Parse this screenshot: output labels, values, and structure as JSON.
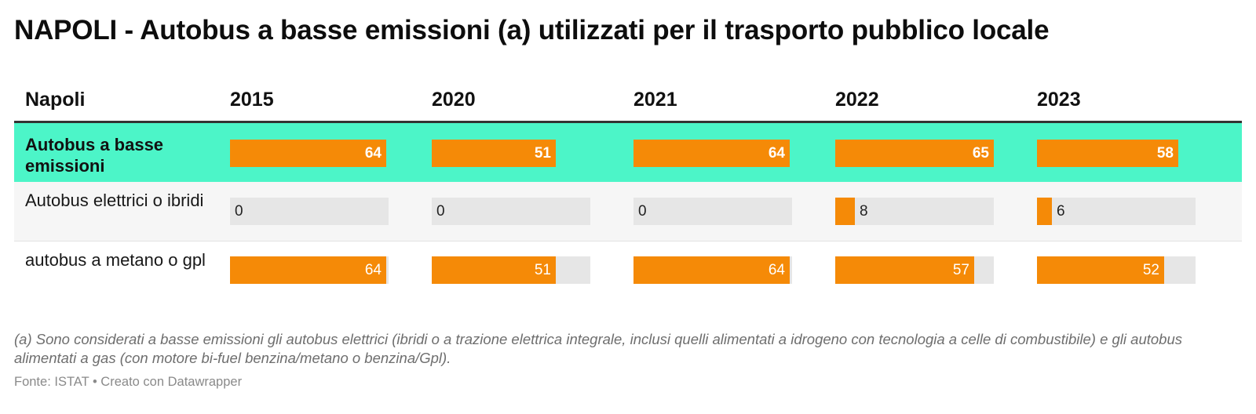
{
  "title": "NAPOLI - Autobus a basse emissioni (a) utilizzati per il trasporto pubblico locale",
  "colors": {
    "bar": "#f58a07",
    "track": "#e6e6e6",
    "highlight_row": "#4cf5c8",
    "alt_row": "#f6f6f6",
    "header_rule": "#333333"
  },
  "chart_data": {
    "type": "table",
    "header": "Napoli",
    "columns": [
      "2015",
      "2020",
      "2021",
      "2022",
      "2023"
    ],
    "scale_max": 65,
    "rows": [
      {
        "label": "Autobus a basse emissioni",
        "highlight": true,
        "bold": true,
        "values": [
          64,
          51,
          64,
          65,
          58
        ]
      },
      {
        "label": "Autobus elettrici o ibridi",
        "highlight": false,
        "bold": false,
        "values": [
          0,
          0,
          0,
          8,
          6
        ]
      },
      {
        "label": "autobus a metano o gpl",
        "highlight": false,
        "bold": false,
        "values": [
          64,
          51,
          64,
          57,
          52
        ]
      }
    ]
  },
  "footnote": "(a) Sono considerati a basse emissioni gli autobus elettrici (ibridi o a trazione elettrica integrale, inclusi quelli alimentati a idrogeno con tecnologia a celle di combustibile) e gli autobus alimentati a gas (con motore bi-fuel benzina/metano o benzina/Gpl).",
  "source": "Fonte: ISTAT • Creato con Datawrapper"
}
